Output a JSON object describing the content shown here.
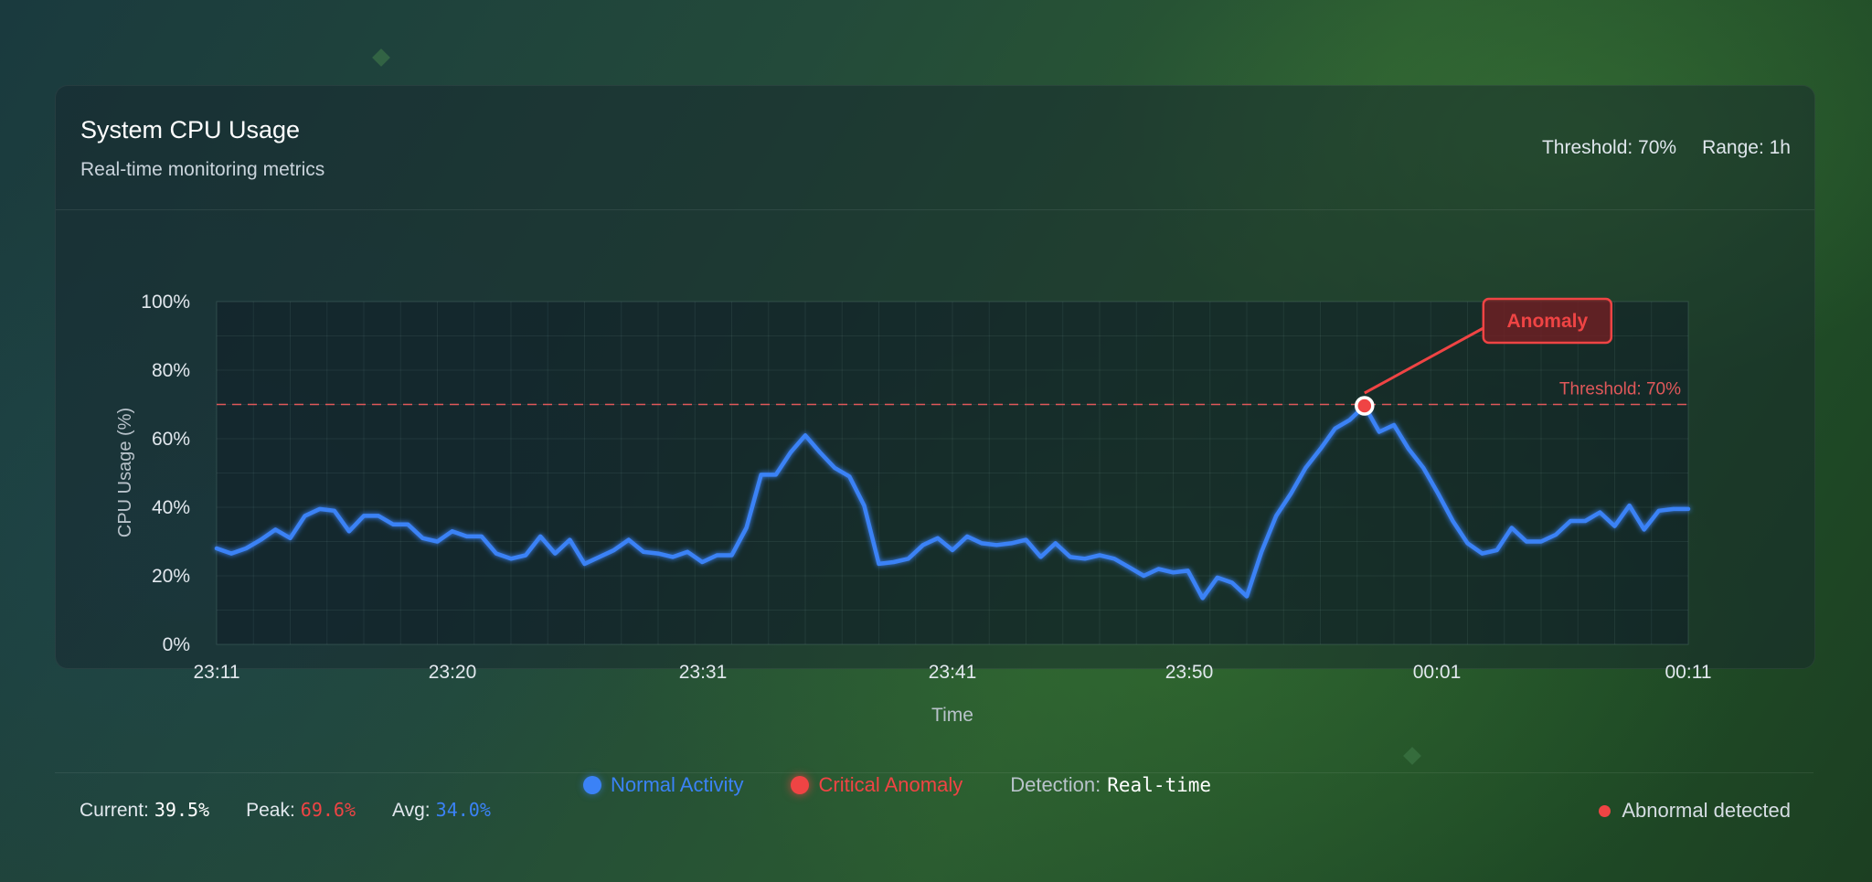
{
  "header": {
    "title": "System CPU Usage",
    "subtitle": "Real-time monitoring metrics",
    "threshold_label": "Threshold: 70%",
    "range_label": "Range: 1h"
  },
  "chart_data": {
    "type": "line",
    "ylabel": "CPU Usage (%)",
    "xlabel": "Time",
    "ylim": [
      0,
      100
    ],
    "y_ticks": [
      "0%",
      "20%",
      "40%",
      "60%",
      "80%",
      "100%"
    ],
    "x_ticks": [
      "23:11",
      "23:20",
      "23:31",
      "23:41",
      "23:50",
      "00:01",
      "00:11"
    ],
    "grid": true,
    "threshold": {
      "value": 70,
      "label": "Threshold: 70%"
    },
    "anomaly": {
      "value": 69.6,
      "label": "Anomaly"
    },
    "series": [
      {
        "values": [
          28,
          26.5,
          28,
          30.5,
          33.5,
          31,
          37.5,
          39.5,
          39,
          33,
          37.5,
          37.5,
          35,
          35,
          31,
          30,
          33,
          31.5,
          31.5,
          26.5,
          25,
          26,
          31.5,
          26.5,
          30.5,
          23.5,
          25.5,
          27.5,
          30.5,
          27,
          26.5,
          25.5,
          27,
          24,
          26,
          26,
          34,
          49.5,
          49.5,
          56,
          61,
          56,
          51.5,
          49,
          40.5,
          23.5,
          24,
          25,
          29,
          31,
          27.5,
          31.5,
          29.5,
          29,
          29.5,
          30.5,
          25.5,
          29.5,
          25.5,
          25,
          26,
          25,
          22.5,
          20,
          22,
          21,
          21.5,
          13.5,
          19.5,
          18,
          14,
          27,
          37.5,
          44,
          51.5,
          57,
          63,
          65.5,
          69.6,
          62,
          64,
          57,
          51.5,
          44,
          36,
          29.5,
          26.5,
          27.5,
          34,
          30,
          30,
          32,
          36,
          36,
          38.5,
          34.5,
          40.5,
          33.5,
          39,
          39.5,
          39.5
        ]
      }
    ]
  },
  "stats": {
    "current_label": "Current:",
    "current_value": "39.5%",
    "peak_label": "Peak:",
    "peak_value": "69.6%",
    "avg_label": "Avg:",
    "avg_value": "34.0%"
  },
  "legend": {
    "normal": "Normal Activity",
    "critical": "Critical Anomaly",
    "detection_label": "Detection:",
    "detection_value": "Real-time"
  },
  "status": {
    "text": "Abnormal detected"
  },
  "colors": {
    "line": "#3b82f6",
    "anomaly": "#ef4444",
    "threshold": "#e0585a",
    "peak_text": "#ef4444",
    "avg_text": "#3b82f6"
  }
}
